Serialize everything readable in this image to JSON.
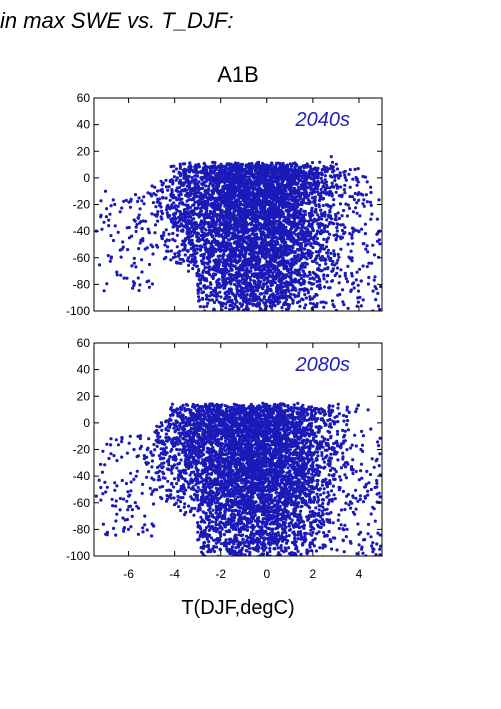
{
  "header": {
    "title": "in max SWE vs. T_DJF:"
  },
  "colors": {
    "points": "#1a1ab8",
    "label": "#2222bb"
  },
  "chart_data": {
    "type": "scatter",
    "title": "A1B",
    "xlabel": "T(DJF,degC)",
    "ylabel": "",
    "xlim": [
      -7.5,
      5
    ],
    "ylim": [
      -100,
      60
    ],
    "x_ticks": [
      -6,
      -4,
      -2,
      0,
      2,
      4
    ],
    "y_ticks": [
      -100,
      -80,
      -60,
      -40,
      -20,
      0,
      20,
      40,
      60
    ],
    "panels": [
      {
        "label": "2040s",
        "series": [
          {
            "cloud": {
              "x_range": [
                -5.8,
                4.8
              ],
              "y_top": 12,
              "y_bottom": -100
            }
          }
        ],
        "notable_points": [
          [
            -7.4,
            -40
          ],
          [
            -6.6,
            -20
          ],
          [
            -5.2,
            -78
          ],
          [
            -3.0,
            -80
          ],
          [
            2.8,
            16
          ],
          [
            4.6,
            -100
          ],
          [
            4.9,
            -40
          ],
          [
            -7.0,
            -10
          ]
        ]
      },
      {
        "label": "2080s",
        "series": [
          {
            "cloud": {
              "x_range": [
                -6.0,
                4.8
              ],
              "y_top": 15,
              "y_bottom": -100
            }
          }
        ],
        "notable_points": [
          [
            -7.4,
            -55
          ],
          [
            -7.2,
            -58
          ],
          [
            -6.6,
            -45
          ],
          [
            -5.9,
            -78
          ],
          [
            -5.0,
            -85
          ],
          [
            4.3,
            -100
          ],
          [
            4.9,
            -95
          ],
          [
            4.6,
            -90
          ]
        ]
      }
    ]
  }
}
